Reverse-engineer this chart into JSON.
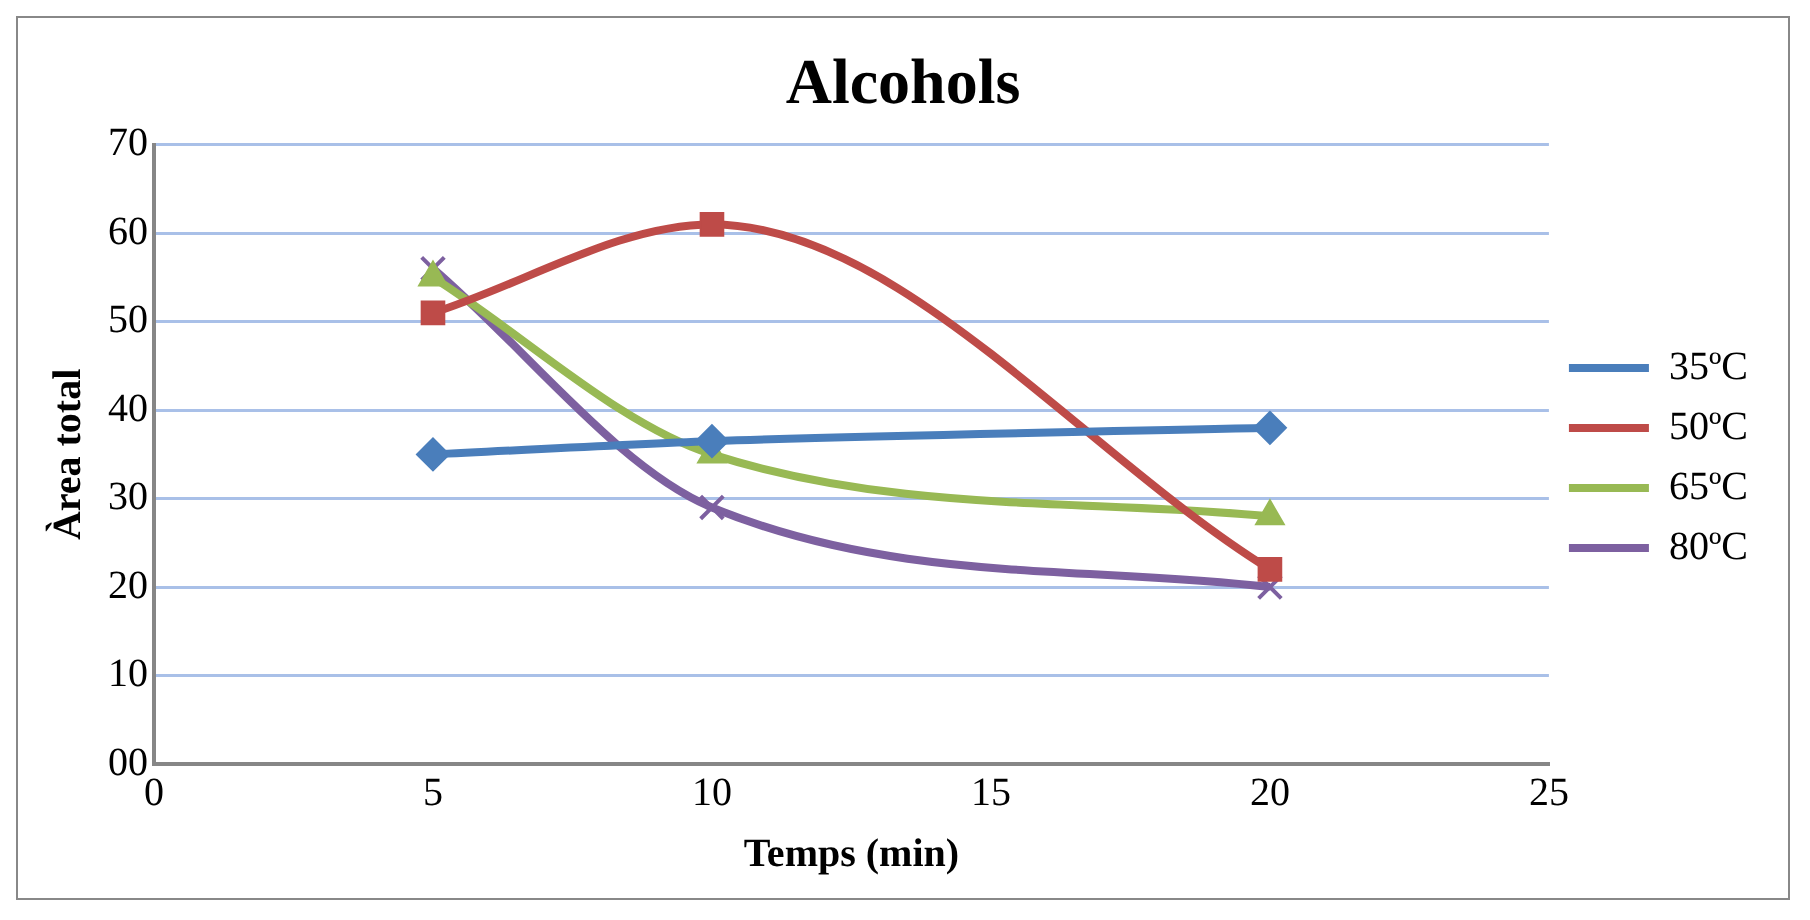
{
  "chart_data": {
    "type": "line",
    "title": "Alcohols",
    "xlabel": "Temps (min)",
    "ylabel": "Àrea total",
    "x": [
      5,
      10,
      20
    ],
    "series": [
      {
        "name": "35ºC",
        "color": "#4a7ebb",
        "values": [
          35,
          36.5,
          38
        ],
        "marker": "diamond"
      },
      {
        "name": "50ºC",
        "color": "#be4b48",
        "values": [
          51,
          61,
          22
        ],
        "marker": "square"
      },
      {
        "name": "65ºC",
        "color": "#98b954",
        "values": [
          55,
          35,
          28
        ],
        "marker": "triangle"
      },
      {
        "name": "80ºC",
        "color": "#7d60a0",
        "values": [
          56,
          29,
          20
        ],
        "marker": "cross"
      }
    ],
    "xlim": [
      0,
      25
    ],
    "xticks": [
      0,
      5,
      10,
      15,
      20,
      25
    ],
    "ylim": [
      0,
      70
    ],
    "yticks": [
      {
        "value": 0,
        "label": "00"
      },
      10,
      20,
      30,
      40,
      50,
      60,
      70
    ],
    "grid": "y",
    "legend": "right"
  }
}
